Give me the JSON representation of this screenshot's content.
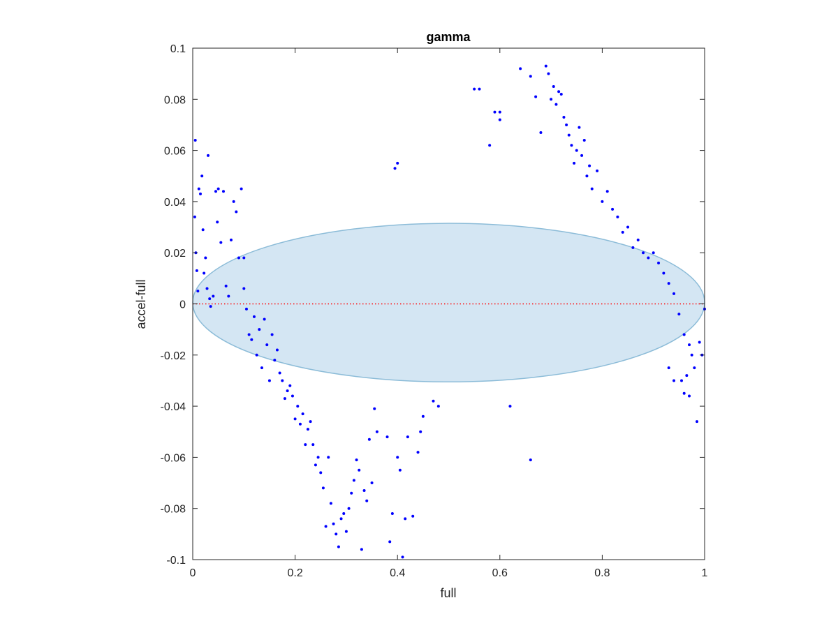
{
  "chart_data": {
    "type": "scatter",
    "title": "gamma",
    "xlabel": "full",
    "ylabel": "accel-full",
    "xlim": [
      0,
      1
    ],
    "ylim": [
      -0.1,
      0.1
    ],
    "x_ticks": [
      0,
      0.2,
      0.4,
      0.6,
      0.8,
      1
    ],
    "x_tick_labels": [
      "0",
      "0.2",
      "0.4",
      "0.6",
      "0.8",
      "1"
    ],
    "y_ticks": [
      -0.1,
      -0.08,
      -0.06,
      -0.04,
      -0.02,
      0,
      0.02,
      0.04,
      0.06,
      0.08,
      0.1
    ],
    "y_tick_labels": [
      "-0.1",
      "-0.08",
      "-0.06",
      "-0.04",
      "-0.02",
      "0",
      "0.02",
      "0.04",
      "0.06",
      "0.08",
      "0.1"
    ],
    "grid": false,
    "reference_line": {
      "y": 0,
      "style": "dotted",
      "color": "#ff0000"
    },
    "ellipse": {
      "cx": 0.5,
      "cy": 0.0005,
      "rx": 0.5,
      "ry": 0.031,
      "fill": "#d4e6f3",
      "stroke": "#8cbcd8"
    },
    "marker_color": "#0000ff",
    "series": [
      {
        "points": [
          [
            0.005,
            0.064
          ],
          [
            0.004,
            0.034
          ],
          [
            0.006,
            0.02
          ],
          [
            0.008,
            0.013
          ],
          [
            0.01,
            0.005
          ],
          [
            0.012,
            0.045
          ],
          [
            0.018,
            0.05
          ],
          [
            0.015,
            0.043
          ],
          [
            0.02,
            0.029
          ],
          [
            0.022,
            0.012
          ],
          [
            0.025,
            0.018
          ],
          [
            0.03,
            0.058
          ],
          [
            0.028,
            0.006
          ],
          [
            0.033,
            0.002
          ],
          [
            0.035,
            -0.001
          ],
          [
            0.04,
            0.003
          ],
          [
            0.045,
            0.044
          ],
          [
            0.048,
            0.032
          ],
          [
            0.05,
            0.045
          ],
          [
            0.055,
            0.024
          ],
          [
            0.06,
            0.044
          ],
          [
            0.065,
            0.007
          ],
          [
            0.07,
            0.003
          ],
          [
            0.075,
            0.025
          ],
          [
            0.08,
            0.04
          ],
          [
            0.085,
            0.036
          ],
          [
            0.09,
            0.018
          ],
          [
            0.095,
            0.045
          ],
          [
            0.1,
            0.018
          ],
          [
            0.1,
            0.006
          ],
          [
            0.105,
            -0.002
          ],
          [
            0.11,
            -0.012
          ],
          [
            0.115,
            -0.014
          ],
          [
            0.12,
            -0.005
          ],
          [
            0.125,
            -0.02
          ],
          [
            0.13,
            -0.01
          ],
          [
            0.135,
            -0.025
          ],
          [
            0.14,
            -0.006
          ],
          [
            0.145,
            -0.016
          ],
          [
            0.15,
            -0.03
          ],
          [
            0.155,
            -0.012
          ],
          [
            0.16,
            -0.022
          ],
          [
            0.165,
            -0.018
          ],
          [
            0.17,
            -0.027
          ],
          [
            0.175,
            -0.03
          ],
          [
            0.18,
            -0.037
          ],
          [
            0.185,
            -0.034
          ],
          [
            0.19,
            -0.032
          ],
          [
            0.195,
            -0.036
          ],
          [
            0.2,
            -0.045
          ],
          [
            0.205,
            -0.04
          ],
          [
            0.21,
            -0.047
          ],
          [
            0.215,
            -0.043
          ],
          [
            0.22,
            -0.055
          ],
          [
            0.225,
            -0.049
          ],
          [
            0.23,
            -0.046
          ],
          [
            0.235,
            -0.055
          ],
          [
            0.24,
            -0.063
          ],
          [
            0.245,
            -0.06
          ],
          [
            0.25,
            -0.066
          ],
          [
            0.255,
            -0.072
          ],
          [
            0.26,
            -0.087
          ],
          [
            0.265,
            -0.06
          ],
          [
            0.27,
            -0.078
          ],
          [
            0.275,
            -0.086
          ],
          [
            0.28,
            -0.09
          ],
          [
            0.285,
            -0.095
          ],
          [
            0.29,
            -0.084
          ],
          [
            0.295,
            -0.082
          ],
          [
            0.3,
            -0.089
          ],
          [
            0.305,
            -0.08
          ],
          [
            0.31,
            -0.074
          ],
          [
            0.315,
            -0.069
          ],
          [
            0.32,
            -0.061
          ],
          [
            0.325,
            -0.065
          ],
          [
            0.33,
            -0.096
          ],
          [
            0.335,
            -0.073
          ],
          [
            0.34,
            -0.077
          ],
          [
            0.345,
            -0.053
          ],
          [
            0.35,
            -0.07
          ],
          [
            0.355,
            -0.041
          ],
          [
            0.36,
            -0.05
          ],
          [
            0.38,
            -0.052
          ],
          [
            0.385,
            -0.093
          ],
          [
            0.39,
            -0.082
          ],
          [
            0.4,
            -0.06
          ],
          [
            0.405,
            -0.065
          ],
          [
            0.41,
            -0.099
          ],
          [
            0.415,
            -0.084
          ],
          [
            0.42,
            -0.052
          ],
          [
            0.43,
            -0.083
          ],
          [
            0.44,
            -0.058
          ],
          [
            0.445,
            -0.05
          ],
          [
            0.45,
            -0.044
          ],
          [
            0.47,
            -0.038
          ],
          [
            0.48,
            -0.04
          ],
          [
            0.4,
            0.055
          ],
          [
            0.395,
            0.053
          ],
          [
            0.55,
            0.084
          ],
          [
            0.56,
            0.084
          ],
          [
            0.58,
            0.062
          ],
          [
            0.59,
            0.075
          ],
          [
            0.6,
            0.072
          ],
          [
            0.6,
            0.075
          ],
          [
            0.62,
            -0.04
          ],
          [
            0.66,
            -0.061
          ],
          [
            0.64,
            0.092
          ],
          [
            0.66,
            0.089
          ],
          [
            0.67,
            0.081
          ],
          [
            0.68,
            0.067
          ],
          [
            0.69,
            0.093
          ],
          [
            0.695,
            0.09
          ],
          [
            0.7,
            0.08
          ],
          [
            0.705,
            0.085
          ],
          [
            0.71,
            0.078
          ],
          [
            0.715,
            0.083
          ],
          [
            0.72,
            0.082
          ],
          [
            0.725,
            0.073
          ],
          [
            0.73,
            0.07
          ],
          [
            0.735,
            0.066
          ],
          [
            0.74,
            0.062
          ],
          [
            0.745,
            0.055
          ],
          [
            0.75,
            0.06
          ],
          [
            0.755,
            0.069
          ],
          [
            0.76,
            0.058
          ],
          [
            0.765,
            0.064
          ],
          [
            0.77,
            0.05
          ],
          [
            0.775,
            0.054
          ],
          [
            0.78,
            0.045
          ],
          [
            0.79,
            0.052
          ],
          [
            0.8,
            0.04
          ],
          [
            0.81,
            0.044
          ],
          [
            0.82,
            0.037
          ],
          [
            0.83,
            0.034
          ],
          [
            0.84,
            0.028
          ],
          [
            0.85,
            0.03
          ],
          [
            0.86,
            0.022
          ],
          [
            0.87,
            0.025
          ],
          [
            0.88,
            0.02
          ],
          [
            0.89,
            0.018
          ],
          [
            0.9,
            0.02
          ],
          [
            0.91,
            0.016
          ],
          [
            0.92,
            0.012
          ],
          [
            0.93,
            0.008
          ],
          [
            0.94,
            0.004
          ],
          [
            0.95,
            -0.004
          ],
          [
            0.955,
            -0.03
          ],
          [
            0.96,
            -0.035
          ],
          [
            0.965,
            -0.028
          ],
          [
            0.97,
            -0.036
          ],
          [
            0.975,
            -0.02
          ],
          [
            0.98,
            -0.025
          ],
          [
            0.985,
            -0.046
          ],
          [
            0.99,
            -0.015
          ],
          [
            0.995,
            -0.02
          ],
          [
            1.0,
            -0.002
          ],
          [
            0.93,
            -0.025
          ],
          [
            0.94,
            -0.03
          ],
          [
            0.96,
            -0.012
          ],
          [
            0.97,
            -0.016
          ]
        ]
      }
    ]
  }
}
